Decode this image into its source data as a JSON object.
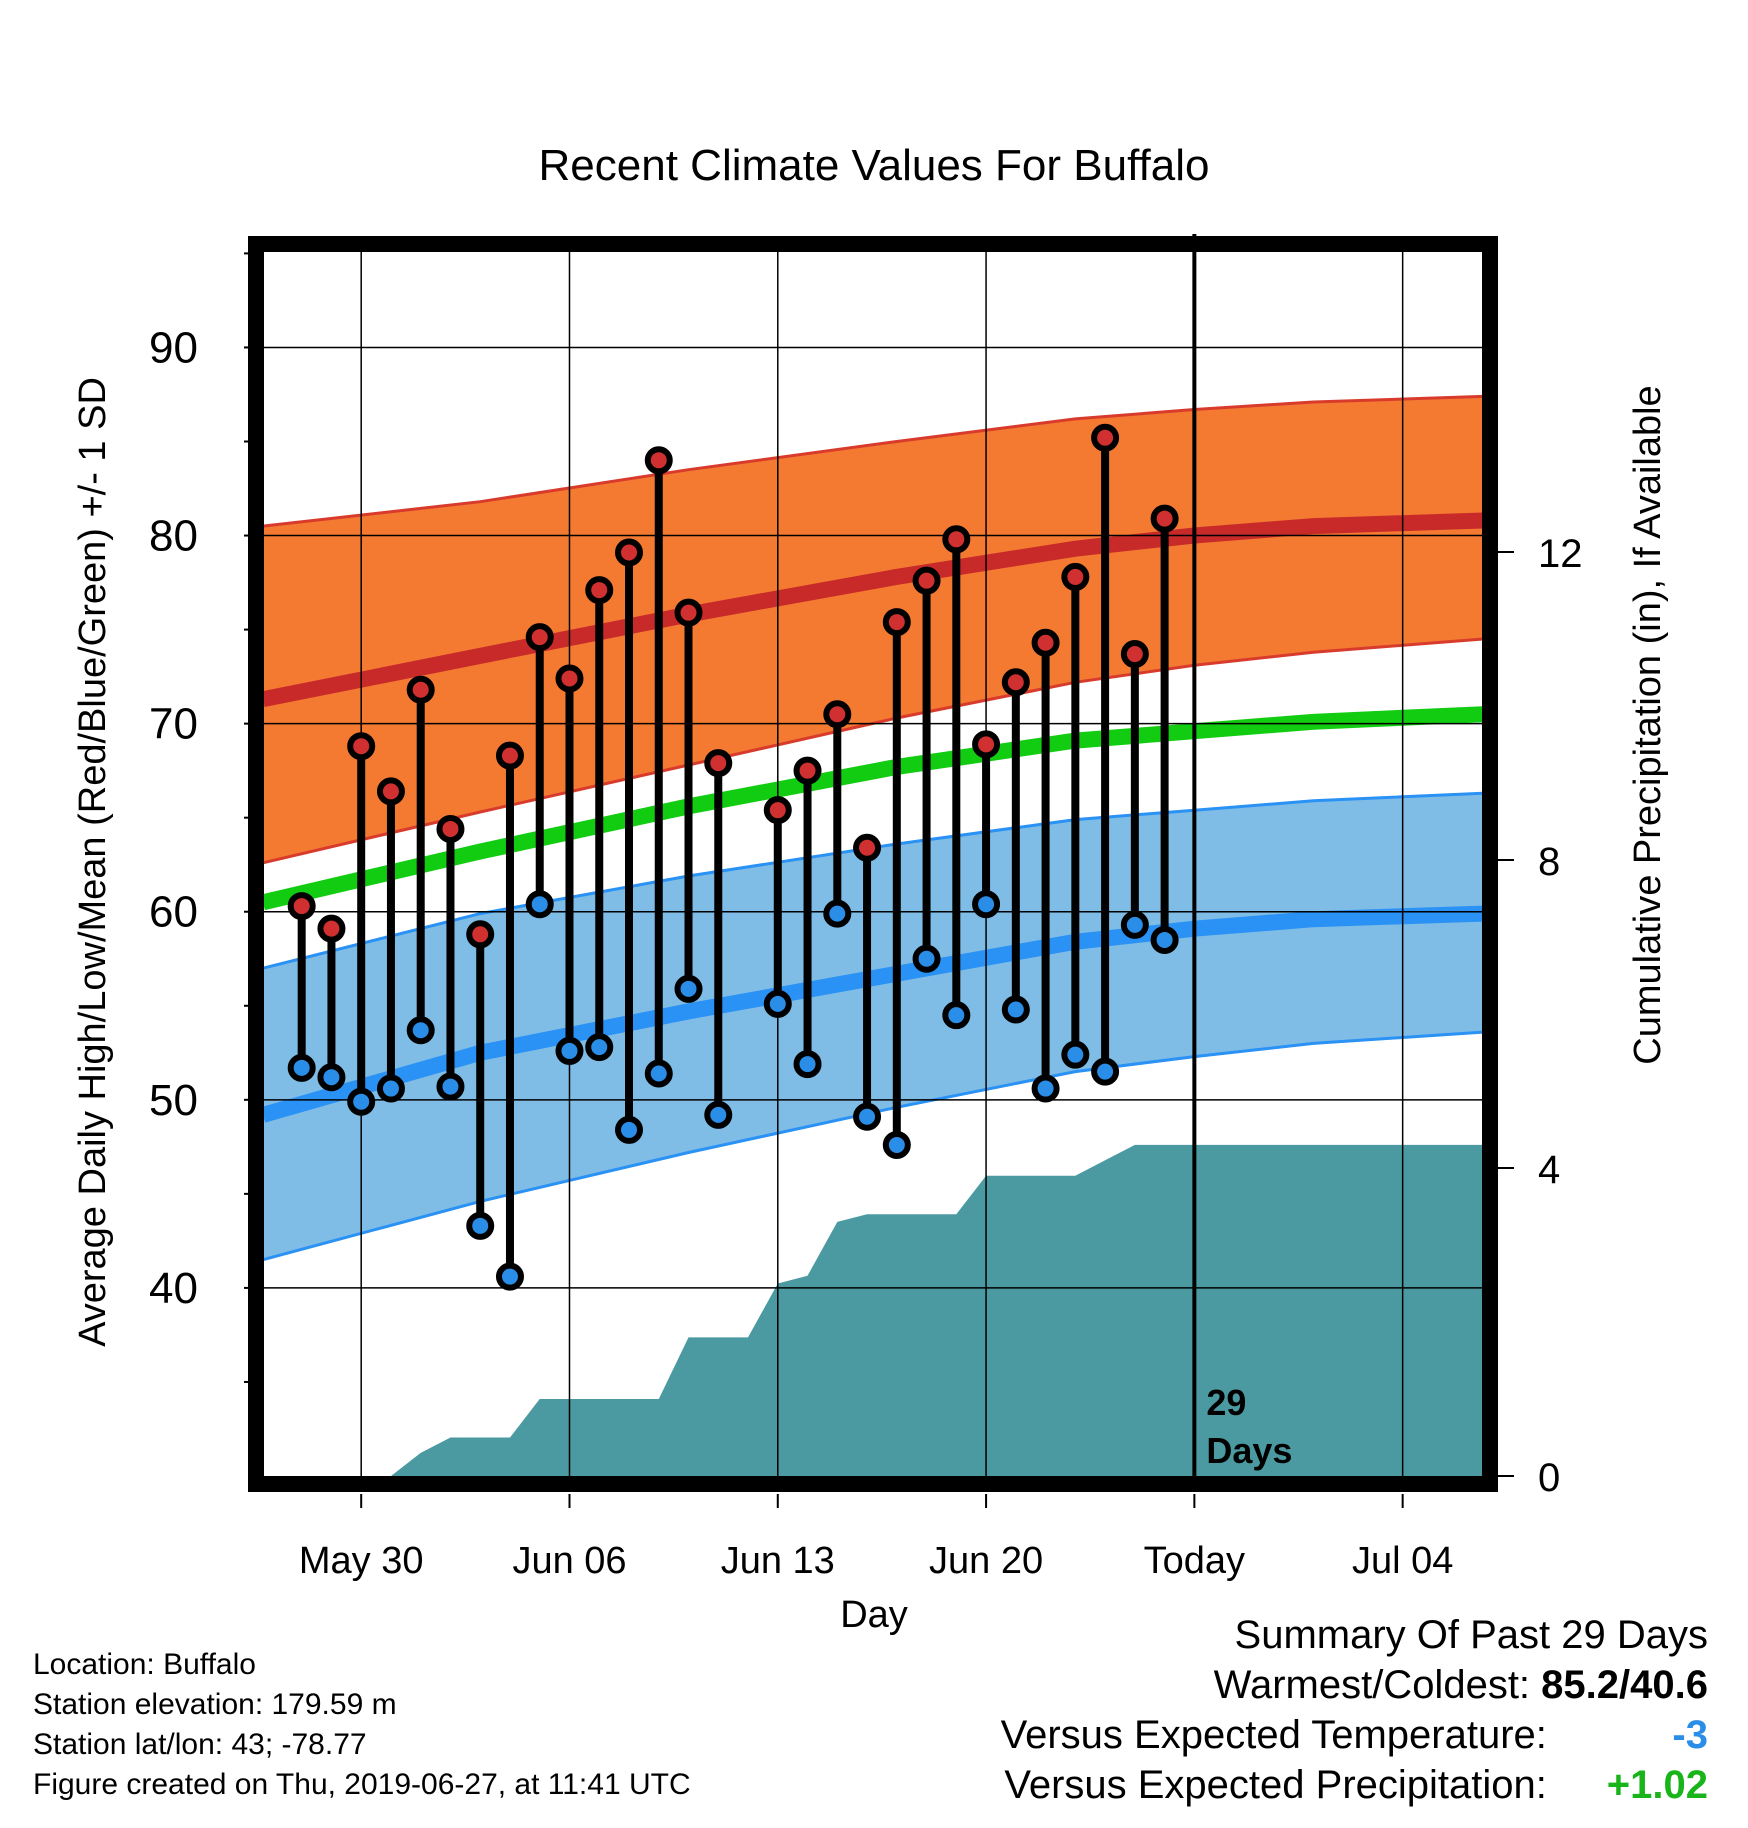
{
  "chart_data": {
    "type": "climate-range",
    "title": "Recent Climate Values For Buffalo",
    "xlabel": "Day",
    "ylabel_left": "Average Daily High/Low/Mean (Red/Blue/Green) +/- 1 SD",
    "ylabel_right": "Cumulative Precipitation (in), If Available",
    "x_ticks": [
      {
        "day": 0,
        "label": "May 30"
      },
      {
        "day": 7,
        "label": "Jun 06"
      },
      {
        "day": 14,
        "label": "Jun 13"
      },
      {
        "day": 21,
        "label": "Jun 20"
      },
      {
        "day": 28,
        "label": "Today"
      },
      {
        "day": 35,
        "label": "Jul 04"
      }
    ],
    "x_range_days": [
      -3.3,
      37.7
    ],
    "ylim_left": [
      30,
      95.5
    ],
    "yticks_left": [
      40,
      50,
      60,
      70,
      80,
      90
    ],
    "ylim_right": [
      0,
      16
    ],
    "yticks_right": [
      0,
      4,
      8,
      12
    ],
    "today_day": 28,
    "today_label_line1": "29",
    "today_label_line2": "Days",
    "normals": {
      "days": [
        -3.3,
        4,
        11,
        18,
        24,
        28,
        32,
        37.7
      ],
      "high_mean": [
        71.3,
        73.6,
        75.8,
        77.8,
        79.3,
        80,
        80.5,
        80.8
      ],
      "high_upper": [
        80.5,
        81.8,
        83.5,
        85,
        86.2,
        86.7,
        87.1,
        87.4
      ],
      "high_lower": [
        62.6,
        65.3,
        67.8,
        70.3,
        72.2,
        73.1,
        73.8,
        74.5
      ],
      "mean": [
        60.5,
        63.2,
        65.6,
        67.7,
        69.1,
        69.6,
        70.1,
        70.5
      ],
      "low_mean": [
        49.2,
        52.5,
        54.7,
        56.7,
        58.4,
        59.1,
        59.6,
        59.9
      ],
      "low_upper": [
        57,
        59.9,
        61.9,
        63.6,
        64.9,
        65.4,
        65.9,
        66.3
      ],
      "low_lower": [
        41.5,
        44.6,
        47.2,
        49.6,
        51.5,
        52.3,
        53,
        53.6
      ]
    },
    "observed": {
      "days": [
        -2,
        -1,
        0,
        1,
        2,
        3,
        4,
        5,
        6,
        7,
        8,
        9,
        10,
        11,
        12,
        14,
        15,
        16,
        17,
        18,
        19,
        20,
        21,
        22,
        23,
        24,
        25,
        26,
        27
      ],
      "highs": [
        60.3,
        59.1,
        68.8,
        66.4,
        71.8,
        64.4,
        58.8,
        68.3,
        74.6,
        72.4,
        77.1,
        79.1,
        84,
        75.9,
        67.9,
        65.4,
        67.5,
        70.5,
        63.4,
        75.4,
        77.6,
        79.8,
        68.9,
        72.2,
        74.3,
        77.8,
        85.2,
        73.7,
        80.9
      ],
      "lows": [
        51.7,
        51.2,
        49.9,
        50.6,
        53.7,
        50.7,
        43.3,
        40.6,
        60.4,
        52.6,
        52.8,
        48.4,
        51.4,
        55.9,
        49.2,
        55.1,
        51.9,
        59.9,
        49.1,
        47.6,
        57.5,
        54.5,
        60.4,
        54.8,
        50.6,
        52.4,
        51.5,
        59.3,
        58.5
      ]
    },
    "precip_cumulative": {
      "days": [
        -3.3,
        1,
        2,
        3,
        4,
        5,
        6,
        7,
        9,
        10,
        11,
        12,
        13,
        14,
        15,
        16,
        17,
        18,
        19,
        20,
        21,
        22,
        23,
        24,
        25,
        26,
        37.7
      ],
      "values": [
        0,
        0,
        0.3,
        0.5,
        0.5,
        0.5,
        1.0,
        1.0,
        1.0,
        1.0,
        1.8,
        1.8,
        1.8,
        2.5,
        2.6,
        3.3,
        3.4,
        3.4,
        3.4,
        3.4,
        3.9,
        3.9,
        3.9,
        3.9,
        4.1,
        4.3,
        4.3
      ]
    },
    "colors": {
      "high_band": "#f47a32",
      "high_line": "#c82a2a",
      "high_edge": "#d83b2b",
      "low_band": "#7fbde6",
      "low_line": "#2a91f5",
      "low_edge": "#2a91f5",
      "mean_line": "#11cc11",
      "precip": "#4b9aa2",
      "high_marker": "#d03030",
      "low_marker": "#2a8ee8"
    },
    "grid": true
  },
  "info": {
    "location": "Location: Buffalo",
    "elevation": "Station elevation: 179.59 m",
    "latlon": "Station lat/lon: 43; -78.77",
    "created": "Figure created on Thu, 2019-06-27, at 11:41 UTC"
  },
  "summary": {
    "heading": "Summary Of Past 29 Days",
    "warm_cold_label": "Warmest/Coldest:",
    "warm_cold_value": "85.2/40.6",
    "temp_label": "Versus Expected Temperature:",
    "temp_value": "-3",
    "temp_color": "#2a8ee8",
    "precip_label": "Versus Expected Precipitation:",
    "precip_value": "+1.02",
    "precip_color": "#19b419"
  }
}
